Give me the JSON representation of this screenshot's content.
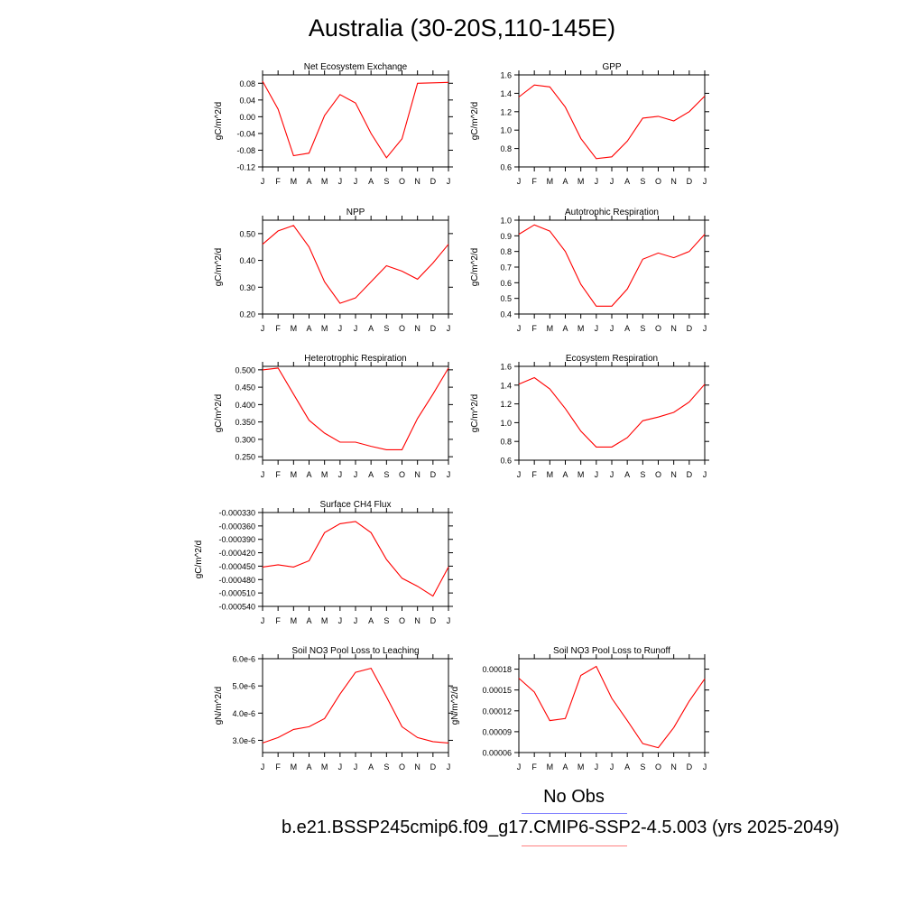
{
  "title": "Australia (30-20S,110-145E)",
  "legend": {
    "no_obs": "No Obs",
    "case": "b.e21.BSSP245cmip6.f09_g17.CMIP6-SSP2-4.5.003 (yrs 2025-2049)",
    "obs_color": "#8080ff",
    "case_color": "#ff8080"
  },
  "colors": {
    "series": "#ff0000",
    "axis": "#000000"
  },
  "chart_data": [
    {
      "type": "line",
      "title": "Net Ecosystem Exchange",
      "ylabel": "gC/m^2/d",
      "categories": [
        "J",
        "F",
        "M",
        "A",
        "M",
        "J",
        "J",
        "A",
        "S",
        "O",
        "N",
        "D",
        "J"
      ],
      "yticks": [
        "0.08",
        "0.04",
        "0.00",
        "-0.04",
        "-0.08",
        "-0.12"
      ],
      "ylim": [
        -0.12,
        0.1
      ],
      "values": [
        0.085,
        0.018,
        -0.093,
        -0.087,
        0.003,
        0.053,
        0.033,
        -0.04,
        -0.098,
        -0.053,
        0.08,
        0.081,
        0.082
      ]
    },
    {
      "type": "line",
      "title": "GPP",
      "ylabel": "gC/m^2/d",
      "categories": [
        "J",
        "F",
        "M",
        "A",
        "M",
        "J",
        "J",
        "A",
        "S",
        "O",
        "N",
        "D",
        "J"
      ],
      "yticks": [
        "1.6",
        "1.4",
        "1.2",
        "1.0",
        "0.8",
        "0.6"
      ],
      "ylim": [
        0.6,
        1.6
      ],
      "values": [
        1.36,
        1.49,
        1.47,
        1.25,
        0.91,
        0.69,
        0.71,
        0.88,
        1.13,
        1.15,
        1.1,
        1.2,
        1.37
      ]
    },
    {
      "type": "line",
      "title": "NPP",
      "ylabel": "gC/m^2/d",
      "categories": [
        "J",
        "F",
        "M",
        "A",
        "M",
        "J",
        "J",
        "A",
        "S",
        "O",
        "N",
        "D",
        "J"
      ],
      "yticks": [
        "0.50",
        "0.40",
        "0.30",
        "0.20"
      ],
      "ylim": [
        0.2,
        0.55
      ],
      "values": [
        0.46,
        0.51,
        0.53,
        0.45,
        0.32,
        0.24,
        0.26,
        0.32,
        0.38,
        0.36,
        0.33,
        0.39,
        0.46
      ]
    },
    {
      "type": "line",
      "title": "Autotrophic Respiration",
      "ylabel": "gC/m^2/d",
      "categories": [
        "J",
        "F",
        "M",
        "A",
        "M",
        "J",
        "J",
        "A",
        "S",
        "O",
        "N",
        "D",
        "J"
      ],
      "yticks": [
        "1.0",
        "0.9",
        "0.8",
        "0.7",
        "0.6",
        "0.5",
        "0.4"
      ],
      "ylim": [
        0.4,
        1.0
      ],
      "values": [
        0.91,
        0.97,
        0.93,
        0.8,
        0.59,
        0.45,
        0.45,
        0.56,
        0.75,
        0.79,
        0.76,
        0.8,
        0.91
      ]
    },
    {
      "type": "line",
      "title": "Heterotrophic Respiration",
      "ylabel": "gC/m^2/d",
      "categories": [
        "J",
        "F",
        "M",
        "A",
        "M",
        "J",
        "J",
        "A",
        "S",
        "O",
        "N",
        "D",
        "J"
      ],
      "yticks": [
        "0.500",
        "0.450",
        "0.400",
        "0.350",
        "0.300",
        "0.250"
      ],
      "ylim": [
        0.24,
        0.51
      ],
      "values": [
        0.5,
        0.505,
        0.43,
        0.355,
        0.318,
        0.292,
        0.292,
        0.28,
        0.27,
        0.27,
        0.36,
        0.43,
        0.505
      ]
    },
    {
      "type": "line",
      "title": "Ecosystem Respiration",
      "ylabel": "gC/m^2/d",
      "categories": [
        "J",
        "F",
        "M",
        "A",
        "M",
        "J",
        "J",
        "A",
        "S",
        "O",
        "N",
        "D",
        "J"
      ],
      "yticks": [
        "1.6",
        "1.4",
        "1.2",
        "1.0",
        "0.8",
        "0.6"
      ],
      "ylim": [
        0.6,
        1.6
      ],
      "values": [
        1.41,
        1.48,
        1.36,
        1.15,
        0.91,
        0.74,
        0.74,
        0.84,
        1.02,
        1.06,
        1.11,
        1.22,
        1.41
      ]
    },
    {
      "type": "line",
      "title": "Surface CH4 Flux",
      "ylabel": "gC/m^2/d",
      "categories": [
        "J",
        "F",
        "M",
        "A",
        "M",
        "J",
        "J",
        "A",
        "S",
        "O",
        "N",
        "D",
        "J"
      ],
      "yticks": [
        "-0.000330",
        "-0.000360",
        "-0.000390",
        "-0.000420",
        "-0.000450",
        "-0.000480",
        "-0.000510",
        "-0.000540"
      ],
      "ylim": [
        -0.00054,
        -0.00033
      ],
      "values": [
        -0.000452,
        -0.000447,
        -0.000452,
        -0.000438,
        -0.000375,
        -0.000355,
        -0.00035,
        -0.000375,
        -0.000435,
        -0.000477,
        -0.000495,
        -0.000517,
        -0.000452
      ]
    },
    {
      "type": "line",
      "title": "Soil NO3 Pool Loss to Leaching",
      "ylabel": "gN/m^2/d",
      "categories": [
        "J",
        "F",
        "M",
        "A",
        "M",
        "J",
        "J",
        "A",
        "S",
        "O",
        "N",
        "D",
        "J"
      ],
      "yticks": [
        "6.0e-6",
        "5.0e-6",
        "4.0e-6",
        "3.0e-6"
      ],
      "ylim": [
        2.55e-06,
        6e-06
      ],
      "values": [
        2.9e-06,
        3.1e-06,
        3.4e-06,
        3.5e-06,
        3.8e-06,
        4.7e-06,
        5.5e-06,
        5.65e-06,
        4.6e-06,
        3.5e-06,
        3.1e-06,
        2.95e-06,
        2.9e-06
      ]
    },
    {
      "type": "line",
      "title": "Soil NO3 Pool Loss to Runoff",
      "ylabel": "gN/m^2/d",
      "categories": [
        "J",
        "F",
        "M",
        "A",
        "M",
        "J",
        "J",
        "A",
        "S",
        "O",
        "N",
        "D",
        "J"
      ],
      "yticks": [
        "0.00018",
        "0.00015",
        "0.00012",
        "0.00009",
        "0.00006"
      ],
      "ylim": [
        6e-05,
        0.000195
      ],
      "values": [
        0.000167,
        0.000147,
        0.000106,
        0.000109,
        0.000171,
        0.000184,
        0.000138,
        0.000106,
        7.3e-05,
        6.7e-05,
        9.6e-05,
        0.000134,
        0.000166
      ]
    }
  ]
}
